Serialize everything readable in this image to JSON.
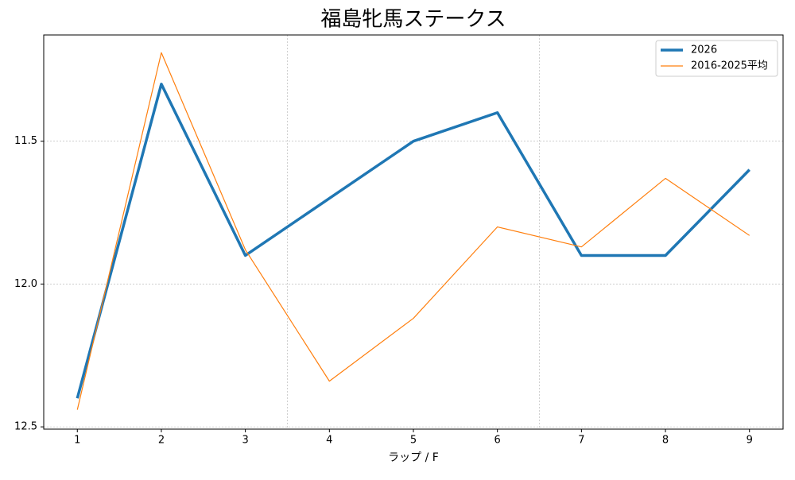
{
  "chart_data": {
    "type": "line",
    "title": "福島牝馬ステークス",
    "xlabel": "ラップ / F",
    "x": [
      1,
      2,
      3,
      4,
      5,
      6,
      7,
      8,
      9
    ],
    "series": [
      {
        "name": "2026",
        "color": "#1f77b4",
        "width": 3.5,
        "values": [
          12.4,
          11.3,
          11.9,
          11.7,
          11.5,
          11.4,
          11.9,
          11.9,
          11.6
        ]
      },
      {
        "name": "2016-2025平均",
        "color": "#ff7f0e",
        "width": 1.2,
        "values": [
          12.44,
          11.19,
          11.88,
          12.34,
          12.12,
          11.8,
          11.87,
          11.63,
          11.83
        ]
      }
    ],
    "xlim": [
      0.6,
      9.4
    ],
    "xticks": [
      1,
      2,
      3,
      4,
      5,
      6,
      7,
      8,
      9
    ],
    "ylim": [
      12.508,
      11.128
    ],
    "yticks": [
      11.5,
      {
        "value": 12.0,
        "label": "12.0"
      },
      12.5
    ],
    "x_gridlines": [
      3.5,
      6.5
    ],
    "grid": true,
    "legend": "upper-right"
  }
}
